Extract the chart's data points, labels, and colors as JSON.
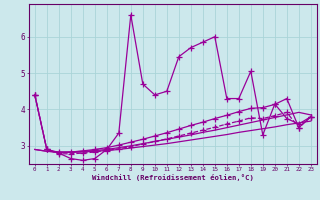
{
  "xlabel": "Windchill (Refroidissement éolien,°C)",
  "bg_color": "#cce8ec",
  "line_color": "#990099",
  "grid_color": "#aad4d8",
  "axis_color": "#660066",
  "text_color": "#660066",
  "xlim": [
    -0.5,
    23.5
  ],
  "ylim": [
    2.5,
    6.9
  ],
  "yticks": [
    3,
    4,
    5,
    6
  ],
  "xticks": [
    0,
    1,
    2,
    3,
    4,
    5,
    6,
    7,
    8,
    9,
    10,
    11,
    12,
    13,
    14,
    15,
    16,
    17,
    18,
    19,
    20,
    21,
    22,
    23
  ],
  "series": [
    {
      "y": [
        4.4,
        2.9,
        2.8,
        2.65,
        2.6,
        2.65,
        2.9,
        3.35,
        6.6,
        4.7,
        4.4,
        4.5,
        5.45,
        5.7,
        5.85,
        6.0,
        4.3,
        4.3,
        5.05,
        3.3,
        4.15,
        3.75,
        3.6,
        3.8
      ],
      "ls": "-",
      "marker": true
    },
    {
      "y": [
        2.9,
        2.85,
        2.82,
        2.82,
        2.83,
        2.85,
        2.87,
        2.9,
        2.94,
        2.98,
        3.02,
        3.06,
        3.11,
        3.16,
        3.21,
        3.26,
        3.31,
        3.37,
        3.42,
        3.47,
        3.52,
        3.58,
        3.63,
        3.68
      ],
      "ls": "-",
      "marker": false
    },
    {
      "y": [
        2.9,
        2.85,
        2.83,
        2.83,
        2.85,
        2.87,
        2.9,
        2.95,
        3.0,
        3.06,
        3.12,
        3.18,
        3.24,
        3.3,
        3.37,
        3.43,
        3.5,
        3.57,
        3.64,
        3.71,
        3.78,
        3.85,
        3.92,
        3.85
      ],
      "ls": "-",
      "marker": false
    },
    {
      "y": [
        4.4,
        2.9,
        2.82,
        2.83,
        2.86,
        2.9,
        2.95,
        3.02,
        3.1,
        3.18,
        3.27,
        3.36,
        3.46,
        3.56,
        3.65,
        3.75,
        3.84,
        3.94,
        4.03,
        4.05,
        4.14,
        4.3,
        3.5,
        3.8
      ],
      "ls": "-",
      "marker": true
    },
    {
      "y": [
        4.4,
        2.9,
        2.78,
        2.78,
        2.8,
        2.83,
        2.87,
        2.92,
        2.98,
        3.05,
        3.12,
        3.19,
        3.27,
        3.35,
        3.43,
        3.51,
        3.6,
        3.68,
        3.77,
        3.75,
        3.83,
        3.92,
        3.5,
        3.8
      ],
      "ls": "--",
      "marker": true
    }
  ],
  "marker_symbol": "+",
  "markersize": 4,
  "linewidth": 0.9
}
